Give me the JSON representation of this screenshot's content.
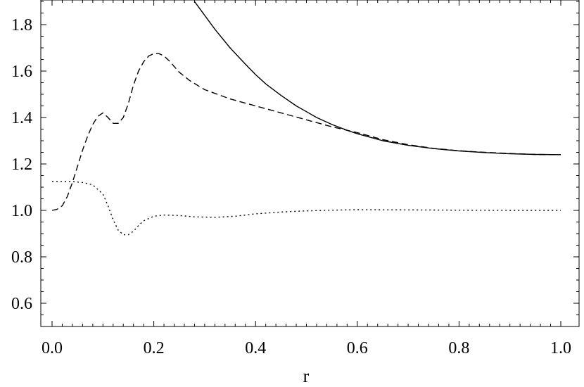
{
  "chart_data": {
    "type": "line",
    "title": "",
    "xlabel": "r",
    "ylabel": "",
    "xlim": [
      0.0,
      1.0
    ],
    "ylim": [
      0.5,
      1.9
    ],
    "grid": false,
    "x_major_ticks": [
      0.0,
      0.2,
      0.4,
      0.6,
      0.8,
      1.0
    ],
    "x_tick_labels": [
      "0.0",
      "0.2",
      "0.4",
      "0.6",
      "0.8",
      "1.0"
    ],
    "y_major_ticks": [
      0.6,
      0.8,
      1.0,
      1.2,
      1.4,
      1.6,
      1.8
    ],
    "y_tick_labels": [
      "0.6",
      "0.8",
      "1.0",
      "1.2",
      "1.4",
      "1.6",
      "1.8"
    ],
    "series": [
      {
        "style": "solid",
        "color": "#000000",
        "x": [
          0.28,
          0.3,
          0.32,
          0.35,
          0.38,
          0.4,
          0.42,
          0.45,
          0.48,
          0.5,
          0.52,
          0.55,
          0.58,
          0.6,
          0.65,
          0.7,
          0.75,
          0.8,
          0.85,
          0.9,
          0.95,
          1.0
        ],
        "y": [
          1.9,
          1.84,
          1.78,
          1.7,
          1.63,
          1.585,
          1.545,
          1.495,
          1.45,
          1.425,
          1.4,
          1.37,
          1.345,
          1.33,
          1.3,
          1.28,
          1.266,
          1.256,
          1.249,
          1.244,
          1.241,
          1.24
        ]
      },
      {
        "style": "dashed",
        "color": "#000000",
        "x": [
          0.0,
          0.01,
          0.02,
          0.03,
          0.04,
          0.05,
          0.06,
          0.07,
          0.08,
          0.09,
          0.1,
          0.11,
          0.12,
          0.13,
          0.14,
          0.15,
          0.16,
          0.17,
          0.18,
          0.19,
          0.2,
          0.21,
          0.22,
          0.23,
          0.24,
          0.25,
          0.27,
          0.3,
          0.35,
          0.4,
          0.45,
          0.5,
          0.55,
          0.6,
          0.65,
          0.7,
          0.75,
          0.8,
          0.85,
          0.9,
          0.95,
          1.0
        ],
        "y": [
          1.0,
          1.005,
          1.02,
          1.06,
          1.12,
          1.19,
          1.26,
          1.32,
          1.37,
          1.405,
          1.42,
          1.4,
          1.375,
          1.375,
          1.4,
          1.46,
          1.54,
          1.6,
          1.64,
          1.665,
          1.675,
          1.675,
          1.665,
          1.645,
          1.62,
          1.595,
          1.56,
          1.52,
          1.48,
          1.45,
          1.42,
          1.39,
          1.36,
          1.335,
          1.305,
          1.283,
          1.267,
          1.257,
          1.25,
          1.245,
          1.241,
          1.24
        ]
      },
      {
        "style": "dotted",
        "color": "#000000",
        "x": [
          0.0,
          0.02,
          0.04,
          0.06,
          0.08,
          0.1,
          0.11,
          0.12,
          0.13,
          0.14,
          0.15,
          0.16,
          0.17,
          0.18,
          0.2,
          0.22,
          0.25,
          0.28,
          0.32,
          0.36,
          0.4,
          0.45,
          0.5,
          0.55,
          0.6,
          0.7,
          0.8,
          0.9,
          1.0
        ],
        "y": [
          1.125,
          1.125,
          1.124,
          1.12,
          1.11,
          1.07,
          1.02,
          0.96,
          0.915,
          0.895,
          0.895,
          0.91,
          0.935,
          0.955,
          0.975,
          0.98,
          0.978,
          0.972,
          0.97,
          0.975,
          0.985,
          0.993,
          0.998,
          1.001,
          1.003,
          1.002,
          1.001,
          1.0,
          1.0
        ]
      }
    ]
  }
}
